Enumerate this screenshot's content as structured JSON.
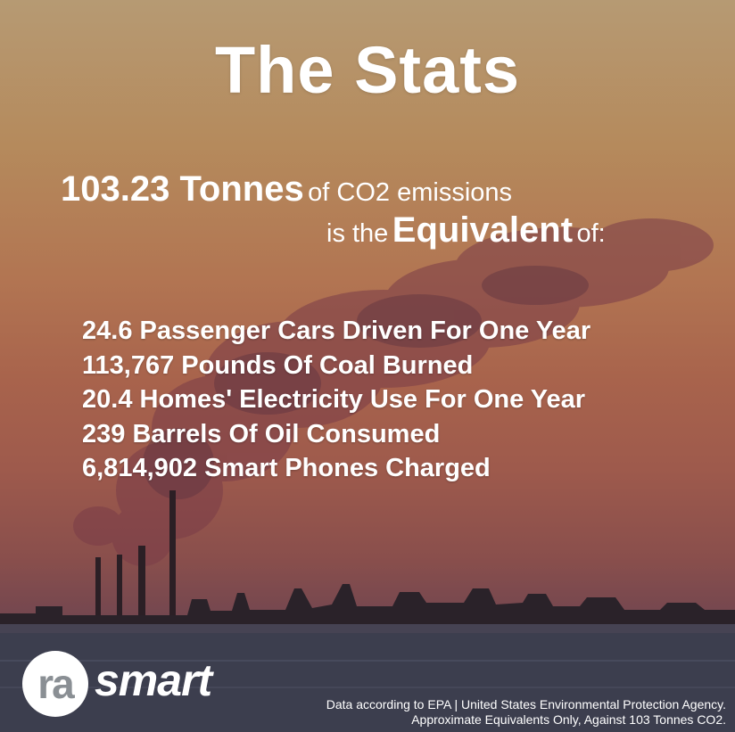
{
  "title": "The Stats",
  "headline": {
    "amount": "103.23 Tonnes",
    "amount_suffix": "of CO2 emissions",
    "prefix": "is the",
    "emphasis": "Equivalent",
    "suffix": "of:"
  },
  "equivalents": [
    "24.6 Passenger Cars Driven For One Year",
    "113,767 Pounds Of Coal Burned",
    "20.4 Homes' Electricity Use For One Year",
    "239 Barrels Of Oil Consumed",
    "6,814,902 Smart Phones Charged"
  ],
  "logo": {
    "circle_text": "ra",
    "wordmark": "smart"
  },
  "footer": {
    "line1": "Data according to EPA | United States Environmental Protection Agency.",
    "line2": "Approximate Equivalents Only, Against 103 Tonnes CO2."
  },
  "colors": {
    "text": "#ffffff",
    "logo_grey": "#8a8f94",
    "water": "#3c3e4e",
    "smoke": "#7a3c48"
  },
  "background_scene": "industrial chimneys emitting smoke at sunset over water"
}
